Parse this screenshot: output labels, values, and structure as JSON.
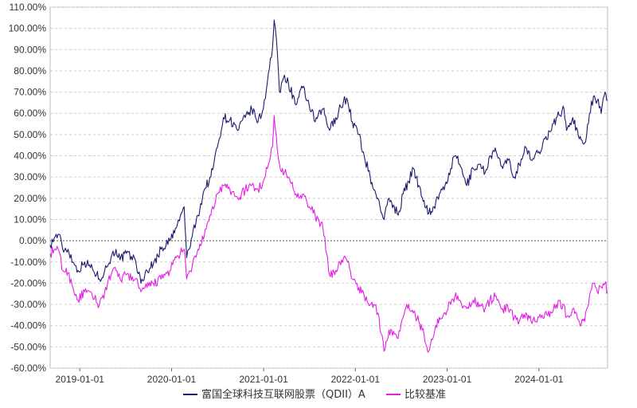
{
  "chart_data": {
    "type": "line",
    "title": "",
    "xlabel": "",
    "ylabel": "",
    "x_range": [
      "2018-09-05",
      "2024-09-30"
    ],
    "ylim": [
      -60,
      110
    ],
    "y_ticks": [
      110,
      100,
      90,
      80,
      70,
      60,
      50,
      40,
      30,
      20,
      10,
      0,
      -10,
      -20,
      -30,
      -40,
      -50,
      -60
    ],
    "y_tick_labels": [
      "110.00%",
      "100.00%",
      "90.00%",
      "80.00%",
      "70.00%",
      "60.00%",
      "50.00%",
      "40.00%",
      "30.00%",
      "20.00%",
      "10.00%",
      "0.00%",
      "-10.00%",
      "-20.00%",
      "-30.00%",
      "-40.00%",
      "-50.00%",
      "-60.00%"
    ],
    "x_ticks": [
      "2019-01-01",
      "2020-01-01",
      "2021-01-01",
      "2022-01-01",
      "2023-01-01",
      "2024-01-01"
    ],
    "grid": "horizontal dashed",
    "legend_position": "bottom-center",
    "series": [
      {
        "name": "富国全球科技互联网股票（QDII）A",
        "color": "#1a1a6e",
        "points": [
          [
            "2018-09-05",
            -2
          ],
          [
            "2018-09-25",
            2
          ],
          [
            "2018-10-10",
            3
          ],
          [
            "2018-10-25",
            -4
          ],
          [
            "2018-11-15",
            -4
          ],
          [
            "2018-12-05",
            -10
          ],
          [
            "2018-12-25",
            -14
          ],
          [
            "2019-01-20",
            -10
          ],
          [
            "2019-02-20",
            -13
          ],
          [
            "2019-03-20",
            -18
          ],
          [
            "2019-04-10",
            -14
          ],
          [
            "2019-05-05",
            -8
          ],
          [
            "2019-05-25",
            -4
          ],
          [
            "2019-06-10",
            -9
          ],
          [
            "2019-07-05",
            -6
          ],
          [
            "2019-08-10",
            -9
          ],
          [
            "2019-09-01",
            -20
          ],
          [
            "2019-09-25",
            -14
          ],
          [
            "2019-10-20",
            -11
          ],
          [
            "2019-11-20",
            -4
          ],
          [
            "2019-12-25",
            0
          ],
          [
            "2020-01-20",
            6
          ],
          [
            "2020-02-20",
            16
          ],
          [
            "2020-03-01",
            -8
          ],
          [
            "2020-03-23",
            2
          ],
          [
            "2020-04-15",
            12
          ],
          [
            "2020-05-10",
            24
          ],
          [
            "2020-06-05",
            30
          ],
          [
            "2020-07-01",
            44
          ],
          [
            "2020-07-25",
            58
          ],
          [
            "2020-08-20",
            57
          ],
          [
            "2020-09-20",
            52
          ],
          [
            "2020-10-20",
            58
          ],
          [
            "2020-11-15",
            62
          ],
          [
            "2020-12-10",
            56
          ],
          [
            "2020-12-31",
            62
          ],
          [
            "2021-01-20",
            79
          ],
          [
            "2021-02-05",
            90
          ],
          [
            "2021-02-12",
            104
          ],
          [
            "2021-02-20",
            96
          ],
          [
            "2021-03-05",
            70
          ],
          [
            "2021-03-25",
            78
          ],
          [
            "2021-04-10",
            74
          ],
          [
            "2021-05-10",
            64
          ],
          [
            "2021-06-05",
            72
          ],
          [
            "2021-07-01",
            64
          ],
          [
            "2021-07-25",
            56
          ],
          [
            "2021-08-25",
            62
          ],
          [
            "2021-09-20",
            52
          ],
          [
            "2021-10-15",
            58
          ],
          [
            "2021-11-15",
            66
          ],
          [
            "2021-12-01",
            66
          ],
          [
            "2021-12-20",
            56
          ],
          [
            "2022-01-15",
            50
          ],
          [
            "2022-02-05",
            40
          ],
          [
            "2022-03-01",
            30
          ],
          [
            "2022-03-15",
            24
          ],
          [
            "2022-04-01",
            20
          ],
          [
            "2022-04-25",
            10
          ],
          [
            "2022-05-15",
            20
          ],
          [
            "2022-06-05",
            16
          ],
          [
            "2022-06-20",
            12
          ],
          [
            "2022-07-10",
            22
          ],
          [
            "2022-08-01",
            28
          ],
          [
            "2022-08-20",
            34
          ],
          [
            "2022-09-10",
            26
          ],
          [
            "2022-10-01",
            19
          ],
          [
            "2022-10-20",
            13
          ],
          [
            "2022-11-10",
            16
          ],
          [
            "2022-12-01",
            22
          ],
          [
            "2022-12-20",
            24
          ],
          [
            "2023-01-15",
            34
          ],
          [
            "2023-02-01",
            40
          ],
          [
            "2023-02-20",
            36
          ],
          [
            "2023-03-20",
            26
          ],
          [
            "2023-04-15",
            34
          ],
          [
            "2023-05-10",
            36
          ],
          [
            "2023-06-01",
            32
          ],
          [
            "2023-06-20",
            40
          ],
          [
            "2023-07-15",
            42
          ],
          [
            "2023-08-10",
            34
          ],
          [
            "2023-09-01",
            38
          ],
          [
            "2023-09-25",
            30
          ],
          [
            "2023-10-15",
            36
          ],
          [
            "2023-11-10",
            44
          ],
          [
            "2023-12-01",
            38
          ],
          [
            "2024-01-01",
            42
          ],
          [
            "2024-01-25",
            48
          ],
          [
            "2024-02-20",
            52
          ],
          [
            "2024-03-10",
            58
          ],
          [
            "2024-04-10",
            62
          ],
          [
            "2024-04-20",
            52
          ],
          [
            "2024-05-15",
            58
          ],
          [
            "2024-06-10",
            48
          ],
          [
            "2024-07-01",
            46
          ],
          [
            "2024-07-20",
            60
          ],
          [
            "2024-08-05",
            68
          ],
          [
            "2024-08-20",
            66
          ],
          [
            "2024-09-05",
            60
          ],
          [
            "2024-09-20",
            70
          ],
          [
            "2024-09-30",
            66
          ]
        ]
      },
      {
        "name": "比较基准",
        "color": "#e61ee6",
        "points": [
          [
            "2018-09-05",
            -6
          ],
          [
            "2018-09-25",
            -4
          ],
          [
            "2018-10-10",
            -5
          ],
          [
            "2018-10-25",
            -14
          ],
          [
            "2018-11-15",
            -15
          ],
          [
            "2018-12-05",
            -22
          ],
          [
            "2018-12-25",
            -28
          ],
          [
            "2019-01-20",
            -24
          ],
          [
            "2019-02-20",
            -26
          ],
          [
            "2019-03-20",
            -30
          ],
          [
            "2019-04-10",
            -24
          ],
          [
            "2019-05-05",
            -16
          ],
          [
            "2019-05-25",
            -14
          ],
          [
            "2019-06-10",
            -18
          ],
          [
            "2019-07-05",
            -16
          ],
          [
            "2019-08-10",
            -18
          ],
          [
            "2019-09-01",
            -24
          ],
          [
            "2019-09-25",
            -22
          ],
          [
            "2019-10-20",
            -20
          ],
          [
            "2019-11-20",
            -18
          ],
          [
            "2019-12-25",
            -14
          ],
          [
            "2020-01-20",
            -8
          ],
          [
            "2020-02-20",
            -4
          ],
          [
            "2020-03-01",
            -18
          ],
          [
            "2020-03-23",
            -12
          ],
          [
            "2020-04-15",
            -4
          ],
          [
            "2020-05-10",
            2
          ],
          [
            "2020-06-05",
            12
          ],
          [
            "2020-07-01",
            22
          ],
          [
            "2020-07-25",
            26
          ],
          [
            "2020-08-20",
            24
          ],
          [
            "2020-09-20",
            20
          ],
          [
            "2020-10-20",
            24
          ],
          [
            "2020-11-15",
            26
          ],
          [
            "2020-12-10",
            24
          ],
          [
            "2020-12-31",
            28
          ],
          [
            "2021-01-20",
            36
          ],
          [
            "2021-02-05",
            44
          ],
          [
            "2021-02-12",
            59
          ],
          [
            "2021-02-20",
            50
          ],
          [
            "2021-03-05",
            36
          ],
          [
            "2021-03-25",
            32
          ],
          [
            "2021-04-10",
            30
          ],
          [
            "2021-05-10",
            22
          ],
          [
            "2021-06-05",
            22
          ],
          [
            "2021-07-01",
            16
          ],
          [
            "2021-07-25",
            12
          ],
          [
            "2021-08-25",
            6
          ],
          [
            "2021-09-20",
            -16
          ],
          [
            "2021-10-15",
            -14
          ],
          [
            "2021-11-15",
            -8
          ],
          [
            "2021-12-01",
            -10
          ],
          [
            "2021-12-20",
            -18
          ],
          [
            "2022-01-15",
            -22
          ],
          [
            "2022-02-05",
            -26
          ],
          [
            "2022-03-01",
            -30
          ],
          [
            "2022-03-15",
            -30
          ],
          [
            "2022-04-01",
            -34
          ],
          [
            "2022-04-25",
            -52
          ],
          [
            "2022-05-15",
            -42
          ],
          [
            "2022-06-05",
            -44
          ],
          [
            "2022-06-20",
            -46
          ],
          [
            "2022-07-10",
            -36
          ],
          [
            "2022-08-01",
            -30
          ],
          [
            "2022-08-20",
            -34
          ],
          [
            "2022-09-10",
            -38
          ],
          [
            "2022-10-01",
            -44
          ],
          [
            "2022-10-20",
            -52
          ],
          [
            "2022-11-10",
            -44
          ],
          [
            "2022-12-01",
            -36
          ],
          [
            "2022-12-20",
            -34
          ],
          [
            "2023-01-15",
            -30
          ],
          [
            "2023-02-01",
            -26
          ],
          [
            "2023-02-20",
            -28
          ],
          [
            "2023-03-20",
            -32
          ],
          [
            "2023-04-15",
            -28
          ],
          [
            "2023-05-10",
            -30
          ],
          [
            "2023-06-01",
            -32
          ],
          [
            "2023-06-20",
            -28
          ],
          [
            "2023-07-15",
            -26
          ],
          [
            "2023-08-10",
            -32
          ],
          [
            "2023-09-01",
            -32
          ],
          [
            "2023-09-25",
            -36
          ],
          [
            "2023-10-15",
            -38
          ],
          [
            "2023-11-10",
            -34
          ],
          [
            "2023-12-01",
            -38
          ],
          [
            "2024-01-01",
            -36
          ],
          [
            "2024-01-25",
            -34
          ],
          [
            "2024-02-20",
            -34
          ],
          [
            "2024-03-10",
            -30
          ],
          [
            "2024-04-10",
            -30
          ],
          [
            "2024-04-20",
            -36
          ],
          [
            "2024-05-15",
            -32
          ],
          [
            "2024-06-10",
            -38
          ],
          [
            "2024-07-01",
            -38
          ],
          [
            "2024-07-20",
            -26
          ],
          [
            "2024-08-05",
            -20
          ],
          [
            "2024-08-20",
            -24
          ],
          [
            "2024-09-05",
            -22
          ],
          [
            "2024-09-20",
            -20
          ],
          [
            "2024-09-30",
            -24
          ]
        ]
      }
    ]
  }
}
